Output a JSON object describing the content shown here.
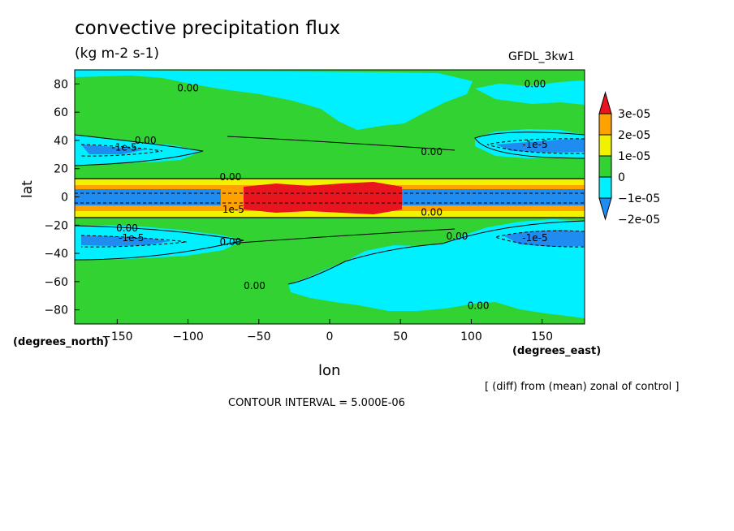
{
  "header": {
    "title": "convective precipitation flux",
    "units": "(kg m-2 s-1)",
    "model": "GFDL_3kw1"
  },
  "footer": {
    "diff_note": "[ (diff) from (mean) zonal of control ]",
    "contour_interval": "CONTOUR INTERVAL = 5.000E-06"
  },
  "chart_data": {
    "type": "heatmap",
    "title": "convective precipitation flux",
    "xlabel": "lon",
    "ylabel": "lat",
    "x_unit_label": "(degrees_east)",
    "y_unit_label": "(degrees_north)",
    "xlim": [
      -180,
      180
    ],
    "ylim": [
      -90,
      90
    ],
    "x_ticks": [
      -150,
      -100,
      -50,
      0,
      50,
      100,
      150
    ],
    "x_tick_labels": [
      "-150",
      "-100",
      "-50",
      "0",
      "50",
      "100",
      "150"
    ],
    "y_ticks": [
      80,
      60,
      40,
      20,
      0,
      -20,
      -40,
      -60,
      -80
    ],
    "y_tick_labels": [
      "80",
      "60",
      "40",
      "20",
      "0",
      "-20",
      "-40",
      "-60",
      "-80"
    ],
    "colorbar": {
      "levels": [
        {
          "label": "3e-05",
          "value": 3e-05,
          "color": "#e8141e"
        },
        {
          "label": "2e-05",
          "value": 2e-05,
          "color": "#ffa200"
        },
        {
          "label": "1e-05",
          "value": 1e-05,
          "color": "#f2f200"
        },
        {
          "label": "0",
          "value": 0,
          "color": "#32d232"
        },
        {
          "label": "-1e-05",
          "value": -1e-05,
          "color": "#00f0ff"
        },
        {
          "label": "-2e-05",
          "value": -2e-05,
          "color": "#1e8cf0"
        }
      ],
      "bands": [
        "#1e8cf0",
        "#00f0ff",
        "#32d232",
        "#f2f200",
        "#ffa200",
        "#e8141e"
      ]
    },
    "regions": [
      {
        "kind": "background",
        "color": "#32d232"
      },
      {
        "kind": "negative",
        "color": "#00f0ff",
        "note": "north polar band"
      },
      {
        "kind": "negative",
        "color": "#00f0ff",
        "note": "northern subtropics"
      },
      {
        "kind": "negative",
        "color": "#00f0ff",
        "note": "southern subtropics"
      },
      {
        "kind": "negative",
        "color": "#00f0ff",
        "note": "south polar region"
      },
      {
        "kind": "equatorial_band",
        "colors": [
          "#f2f200",
          "#ffa200",
          "#e8141e",
          "#1e8cf0"
        ]
      }
    ],
    "contour_labels": [
      {
        "text": "0.00",
        "lon": -100,
        "lat": 77
      },
      {
        "text": "0.00",
        "lon": 145,
        "lat": 80
      },
      {
        "text": "0.00",
        "lon": -130,
        "lat": 40
      },
      {
        "text": "-1e-5",
        "lon": -145,
        "lat": 35
      },
      {
        "text": "0.00",
        "lon": 72,
        "lat": 32
      },
      {
        "text": "-1e-5",
        "lon": 145,
        "lat": 37
      },
      {
        "text": "0.00",
        "lon": -70,
        "lat": 14
      },
      {
        "text": "1e-5",
        "lon": -68,
        "lat": -9
      },
      {
        "text": "0.00",
        "lon": 72,
        "lat": -11
      },
      {
        "text": "0.00",
        "lon": -143,
        "lat": -22
      },
      {
        "text": "-1e-5",
        "lon": -140,
        "lat": -29
      },
      {
        "text": "0.00",
        "lon": -70,
        "lat": -32
      },
      {
        "text": "0.00",
        "lon": 90,
        "lat": -28
      },
      {
        "text": "-1e-5",
        "lon": 145,
        "lat": -29
      },
      {
        "text": "0.00",
        "lon": -53,
        "lat": -63
      },
      {
        "text": "0.00",
        "lon": 105,
        "lat": -77
      }
    ]
  }
}
